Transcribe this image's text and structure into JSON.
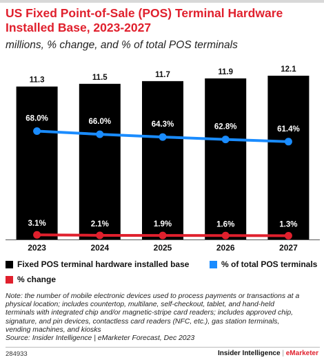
{
  "header": {
    "title_line1": "US Fixed Point-of-Sale (POS) Terminal Hardware",
    "title_line2": "Installed Base, 2023-2027",
    "subtitle": "millions, % change, and % of total POS terminals"
  },
  "chart_data": {
    "type": "bar",
    "categories": [
      "2023",
      "2024",
      "2025",
      "2026",
      "2027"
    ],
    "series": [
      {
        "name": "Fixed POS terminal hardware installed base",
        "type": "bar",
        "values": [
          11.3,
          11.5,
          11.7,
          11.9,
          12.1
        ],
        "labels": [
          "11.3",
          "11.5",
          "11.7",
          "11.9",
          "12.1"
        ],
        "color": "#000000"
      },
      {
        "name": "% of total POS terminals",
        "type": "line",
        "values": [
          68.0,
          66.0,
          64.3,
          62.8,
          61.4
        ],
        "labels": [
          "68.0%",
          "66.0%",
          "64.3%",
          "62.8%",
          "61.4%"
        ],
        "color": "#1a8cff"
      },
      {
        "name": "% change",
        "type": "line",
        "values": [
          3.1,
          2.1,
          1.9,
          1.6,
          1.3
        ],
        "labels": [
          "3.1%",
          "2.1%",
          "1.9%",
          "1.6%",
          "1.3%"
        ],
        "color": "#e0202d"
      }
    ],
    "legend_position": "bottom",
    "grid": false
  },
  "legend": {
    "bars": "Fixed POS terminal hardware installed base",
    "share": "% of total POS terminals",
    "change": "% change"
  },
  "note": {
    "lines": [
      "Note: the number of mobile electronic devices used to process payments or transactions at a",
      "physical location; includes countertop, multilane, self-checkout, tablet, and hand-held",
      "terminals with integrated chip and/or magnetic-stripe card readers; includes approved chip,",
      "signature, and pin devices, contactless card readers (NFC, etc.), gas station terminals,",
      "vending machines, and kiosks",
      "Source: Insider Intelligence | eMarketer Forecast, Dec 2023"
    ]
  },
  "footer": {
    "id": "284933",
    "brand_main": "Insider Intelligence",
    "brand_sep": "|",
    "brand_em": "eMarketer"
  }
}
